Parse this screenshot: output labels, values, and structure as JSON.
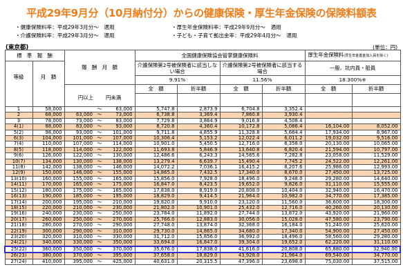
{
  "title": "平成29年9月分（10月納付分）からの健康保険・厚生年金保険の保険料額表",
  "notes": {
    "health_rate": "・健康保険料率：平成29年3月分～　適用",
    "pension_rate": "・厚生年金保険料率：平成29年9月分～　適用",
    "care_rate": "・介護保険料率：平成29年3月分～　適用",
    "child_contribution": "・子ども・子育て拠出金率：平成29年4月分～　適用"
  },
  "region_label": "(東京都)",
  "unit_label": "(単位：円)",
  "header": {
    "standard_remuneration": "標　準　報　酬",
    "remuneration_monthly": "報　酬　月　額",
    "grade": "等級",
    "monthly_amount": "月　額",
    "kyokai_health": "全国健康保険協会管掌健康保険料",
    "pension": "厚生年金保険料",
    "pension_note": "(厚生年金基金加入員を除く)",
    "not_care": "介護保険第2号被保険者に該当しない場合",
    "care": "介護保険第2号被保険者に該当する場合",
    "general": "一般、坑内員・船員",
    "rate_not_care": "9.91%",
    "rate_care": "11.56%",
    "rate_pension": "18.300%※",
    "full_amount": "全　額",
    "half_amount": "折半額",
    "over": "円以上",
    "under": "円未満",
    "range_mark": "～"
  },
  "rows": [
    {
      "grade": "1",
      "monthly": "58,000",
      "lower": "",
      "upper": "63,000",
      "h_full": "5,747.8",
      "h_half": "2,873.9",
      "c_full": "6,704.8",
      "c_half": "3,352.4",
      "p_full": "",
      "p_half": "",
      "shade": false,
      "highlight": false
    },
    {
      "grade": "2",
      "monthly": "68,000",
      "lower": "63,000",
      "upper": "73,000",
      "h_full": "6,738.8",
      "h_half": "3,369.4",
      "c_full": "7,860.8",
      "c_half": "3,930.4",
      "p_full": "",
      "p_half": "",
      "shade": true,
      "highlight": false
    },
    {
      "grade": "3",
      "monthly": "78,000",
      "lower": "73,000",
      "upper": "83,000",
      "h_full": "7,729.8",
      "h_half": "3,864.9",
      "c_full": "9,016.8",
      "c_half": "4,508.4",
      "p_full": "",
      "p_half": "",
      "shade": false,
      "highlight": false
    },
    {
      "grade": "4(1)",
      "monthly": "88,000",
      "lower": "83,000",
      "upper": "93,000",
      "h_full": "8,720.8",
      "h_half": "4,360.4",
      "c_full": "10,172.8",
      "c_half": "5,086.4",
      "p_full": "16,104.00",
      "p_half": "8,052.00",
      "shade": true,
      "highlight": false
    },
    {
      "grade": "5(2)",
      "monthly": "98,000",
      "lower": "93,000",
      "upper": "101,000",
      "h_full": "9,711.8",
      "h_half": "4,855.9",
      "c_full": "11,328.8",
      "c_half": "5,664.4",
      "p_full": "17,934.00",
      "p_half": "8,967.00",
      "shade": false,
      "highlight": false
    },
    {
      "grade": "6(3)",
      "monthly": "104,000",
      "lower": "101,000",
      "upper": "107,000",
      "h_full": "10,306.4",
      "h_half": "5,153.2",
      "c_full": "12,022.4",
      "c_half": "6,011.2",
      "p_full": "19,032.00",
      "p_half": "9,516.00",
      "shade": true,
      "highlight": false
    },
    {
      "grade": "7(4)",
      "monthly": "110,000",
      "lower": "107,000",
      "upper": "114,000",
      "h_full": "10,901.0",
      "h_half": "5,450.5",
      "c_full": "12,716.0",
      "c_half": "6,358.0",
      "p_full": "20,130.00",
      "p_half": "10,065.00",
      "shade": false,
      "highlight": false
    },
    {
      "grade": "8(5)",
      "monthly": "118,000",
      "lower": "114,000",
      "upper": "122,000",
      "h_full": "11,693.8",
      "h_half": "5,846.9",
      "c_full": "13,640.8",
      "c_half": "6,820.4",
      "p_full": "21,594.00",
      "p_half": "10,797.00",
      "shade": true,
      "highlight": false
    },
    {
      "grade": "9(6)",
      "monthly": "126,000",
      "lower": "122,000",
      "upper": "130,000",
      "h_full": "12,486.6",
      "h_half": "6,243.3",
      "c_full": "14,565.6",
      "c_half": "7,282.8",
      "p_full": "23,058.00",
      "p_half": "11,529.00",
      "shade": false,
      "highlight": false
    },
    {
      "grade": "10(7)",
      "monthly": "134,000",
      "lower": "130,000",
      "upper": "138,000",
      "h_full": "13,279.4",
      "h_half": "6,639.7",
      "c_full": "15,490.4",
      "c_half": "7,745.2",
      "p_full": "24,522.00",
      "p_half": "12,261.00",
      "shade": true,
      "highlight": false
    },
    {
      "grade": "11(8)",
      "monthly": "142,000",
      "lower": "138,000",
      "upper": "146,000",
      "h_full": "14,072.2",
      "h_half": "7,036.1",
      "c_full": "16,415.2",
      "c_half": "8,207.6",
      "p_full": "25,986.00",
      "p_half": "12,993.00",
      "shade": false,
      "highlight": false
    },
    {
      "grade": "12(9)",
      "monthly": "150,000",
      "lower": "146,000",
      "upper": "155,000",
      "h_full": "14,865.0",
      "h_half": "7,432.5",
      "c_full": "17,340.0",
      "c_half": "8,670.0",
      "p_full": "27,450.00",
      "p_half": "13,725.00",
      "shade": true,
      "highlight": false
    },
    {
      "grade": "13(10)",
      "monthly": "160,000",
      "lower": "155,000",
      "upper": "165,000",
      "h_full": "15,856.0",
      "h_half": "7,928.0",
      "c_full": "18,496.0",
      "c_half": "9,248.0",
      "p_full": "29,280.00",
      "p_half": "14,640.00",
      "shade": false,
      "highlight": false
    },
    {
      "grade": "14(11)",
      "monthly": "170,000",
      "lower": "165,000",
      "upper": "175,000",
      "h_full": "16,847.0",
      "h_half": "8,423.5",
      "c_full": "19,652.0",
      "c_half": "9,826.0",
      "p_full": "31,110.00",
      "p_half": "15,555.00",
      "shade": true,
      "highlight": false
    },
    {
      "grade": "15(12)",
      "monthly": "180,000",
      "lower": "175,000",
      "upper": "185,000",
      "h_full": "17,838.0",
      "h_half": "8,919.0",
      "c_full": "20,808.0",
      "c_half": "10,404.0",
      "p_full": "32,940.00",
      "p_half": "16,470.00",
      "shade": false,
      "highlight": false
    },
    {
      "grade": "16(13)",
      "monthly": "190,000",
      "lower": "185,000",
      "upper": "195,000",
      "h_full": "18,829.0",
      "h_half": "9,414.5",
      "c_full": "21,964.0",
      "c_half": "10,982.0",
      "p_full": "34,770.00",
      "p_half": "17,385.00",
      "shade": true,
      "highlight": false
    },
    {
      "grade": "17(14)",
      "monthly": "200,000",
      "lower": "195,000",
      "upper": "210,000",
      "h_full": "19,820.0",
      "h_half": "9,910.0",
      "c_full": "23,120.0",
      "c_half": "11,560.0",
      "p_full": "36,600.00",
      "p_half": "18,300.00",
      "shade": false,
      "highlight": false
    },
    {
      "grade": "18(15)",
      "monthly": "220,000",
      "lower": "210,000",
      "upper": "230,000",
      "h_full": "21,802.0",
      "h_half": "10,901.0",
      "c_full": "25,432.0",
      "c_half": "12,716.0",
      "p_full": "40,260.00",
      "p_half": "20,130.00",
      "shade": true,
      "highlight": false
    },
    {
      "grade": "19(16)",
      "monthly": "240,000",
      "lower": "230,000",
      "upper": "250,000",
      "h_full": "23,784.0",
      "h_half": "11,892.0",
      "c_full": "27,744.0",
      "c_half": "13,872.0",
      "p_full": "43,920.00",
      "p_half": "21,960.00",
      "shade": false,
      "highlight": false
    },
    {
      "grade": "20(17)",
      "monthly": "260,000",
      "lower": "250,000",
      "upper": "270,000",
      "h_full": "25,766.0",
      "h_half": "12,883.0",
      "c_full": "30,056.0",
      "c_half": "15,028.0",
      "p_full": "47,580.00",
      "p_half": "23,790.00",
      "shade": true,
      "highlight": false
    },
    {
      "grade": "21(18)",
      "monthly": "280,000",
      "lower": "270,000",
      "upper": "290,000",
      "h_full": "27,748.0",
      "h_half": "13,874.0",
      "c_full": "32,368.0",
      "c_half": "16,184.0",
      "p_full": "51,240.00",
      "p_half": "25,620.00",
      "shade": false,
      "highlight": false
    },
    {
      "grade": "22(19)",
      "monthly": "300,000",
      "lower": "290,000",
      "upper": "310,000",
      "h_full": "29,730.0",
      "h_half": "14,865.0",
      "c_full": "34,680.0",
      "c_half": "17,340.0",
      "p_full": "54,900.00",
      "p_half": "27,450.00",
      "shade": true,
      "highlight": false
    },
    {
      "grade": "23(20)",
      "monthly": "320,000",
      "lower": "310,000",
      "upper": "330,000",
      "h_full": "31,712.0",
      "h_half": "15,856.0",
      "c_full": "36,992.0",
      "c_half": "18,496.0",
      "p_full": "58,560.00",
      "p_half": "29,280.00",
      "shade": false,
      "highlight": false
    },
    {
      "grade": "24(21)",
      "monthly": "340,000",
      "lower": "330,000",
      "upper": "350,000",
      "h_full": "33,694.0",
      "h_half": "16,847.0",
      "c_full": "39,304.0",
      "c_half": "19,652.0",
      "p_full": "62,220.00",
      "p_half": "31,110.00",
      "shade": true,
      "highlight": false
    },
    {
      "grade": "25(22)",
      "monthly": "360,000",
      "lower": "350,000",
      "upper": "370,000",
      "h_full": "35,676.0",
      "h_half": "17,838.0",
      "c_full": "41,616.0",
      "c_half": "20,808.0",
      "p_full": "65,880.00",
      "p_half": "32,940.00",
      "shade": false,
      "highlight": true
    },
    {
      "grade": "26(23)",
      "monthly": "380,000",
      "lower": "370,000",
      "upper": "395,000",
      "h_full": "37,658.0",
      "h_half": "18,829.0",
      "c_full": "43,928.0",
      "c_half": "21,964.0",
      "p_full": "69,540.00",
      "p_half": "34,770.00",
      "shade": true,
      "highlight": false
    },
    {
      "grade": "27(24)",
      "monthly": "410,000",
      "lower": "395,000",
      "upper": "425,000",
      "h_full": "40,631.0",
      "h_half": "20,315.5",
      "c_full": "47,396.0",
      "c_half": "23,698.0",
      "p_full": "75,030.00",
      "p_half": "37,515.00",
      "shade": false,
      "highlight": false
    }
  ]
}
